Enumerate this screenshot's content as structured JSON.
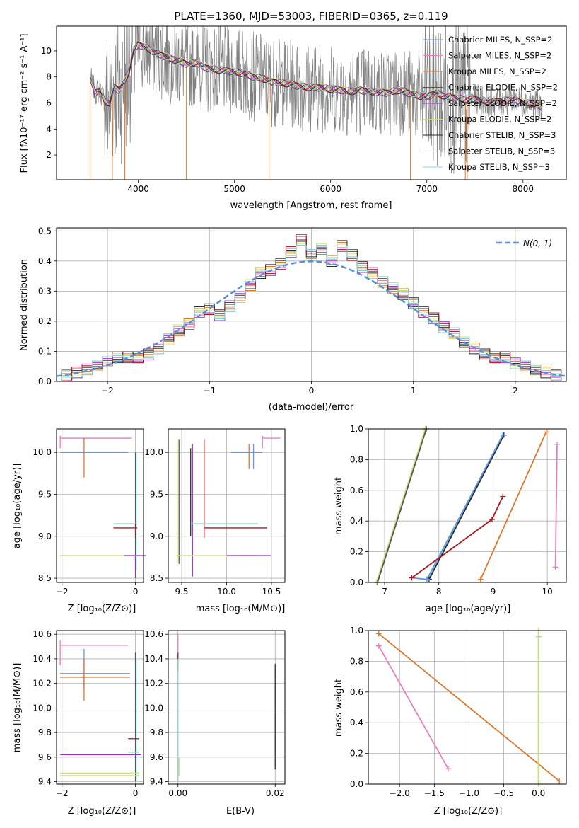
{
  "title": "PLATE=1360, MJD=53003, FIBERID=0365, z=0.119",
  "colors": {
    "chabrier_miles": "#6495ed",
    "salpeter_miles": "#e87fbd",
    "kroupa_miles": "#e2762a",
    "chabrier_elodie": "#555555",
    "salpeter_elodie": "#9b30c8",
    "kroupa_elodie": "#c8e070",
    "chabrier_stelib": "#2b2b2b",
    "salpeter_stelib": "#b0161e",
    "kroupa_stelib": "#7fd8d8",
    "data": "#808080",
    "normal": "#5b8ed8"
  },
  "chart_data": [
    {
      "id": "spectrum",
      "type": "line",
      "xlabel": "wavelength [Angstrom, rest frame]",
      "ylabel": "Flux [fλ10⁻¹⁷ erg cm⁻² s⁻¹ A⁻¹]",
      "xlim": [
        3150,
        8450
      ],
      "ylim": [
        0.1,
        11.9
      ],
      "xticks": [
        "4000",
        "5000",
        "6000",
        "7000",
        "8000"
      ],
      "yticks": [
        "2",
        "4",
        "6",
        "8",
        "10"
      ],
      "legend": [
        "Chabrier MILES, N_SSP=2",
        "Salpeter MILES, N_SSP=2",
        "Kroupa MILES, N_SSP=2",
        "Chabrier ELODIE, N_SSP=2",
        "Salpeter ELODIE, N_SSP=2",
        "Kroupa ELODIE, N_SSP=2",
        "Chabrier STELIB, N_SSP=3",
        "Salpeter STELIB, N_SSP=3",
        "Kroupa STELIB, N_SSP=3"
      ],
      "legend_position": "upper right",
      "model_continuum": {
        "x": [
          3500,
          3550,
          3600,
          3650,
          3700,
          3750,
          3800,
          3850,
          3900,
          3950,
          4000,
          4100,
          4200,
          4300,
          4400,
          4500,
          4600,
          4700,
          4800,
          4900,
          5000,
          5100,
          5200,
          5300,
          5400,
          5500,
          5600,
          5700,
          5800,
          5900,
          6000,
          6100,
          6200,
          6300,
          6400,
          6500,
          6600,
          6700,
          6800,
          6900,
          7000,
          7100,
          7200,
          7300,
          7400,
          7500,
          7600,
          7700,
          7800,
          7900,
          8000,
          8100,
          8200
        ],
        "y": [
          8.0,
          6.8,
          7.0,
          6.2,
          6.0,
          7.2,
          7.0,
          7.6,
          8.4,
          10.0,
          10.5,
          10.2,
          9.8,
          9.5,
          9.3,
          9.0,
          9.1,
          8.7,
          8.6,
          8.5,
          8.4,
          8.3,
          8.0,
          7.9,
          7.6,
          7.6,
          7.4,
          7.3,
          7.2,
          7.2,
          7.1,
          7.0,
          6.9,
          7.0,
          6.9,
          6.8,
          6.8,
          7.0,
          6.8,
          6.6,
          6.5,
          6.8,
          6.5,
          6.4,
          6.3,
          6.3,
          6.2,
          6.1,
          6.2,
          6.3,
          6.0,
          6.0,
          5.7
        ]
      },
      "data_range": [
        3500,
        8200
      ]
    },
    {
      "id": "residuals",
      "type": "histogram",
      "xlabel": "(data-model)/error",
      "ylabel": "Normed distribution",
      "xlim": [
        -2.5,
        2.5
      ],
      "ylim": [
        0,
        0.51
      ],
      "xticks": [
        "−2",
        "−1",
        "0",
        "1",
        "2"
      ],
      "yticks": [
        "0.0",
        "0.1",
        "0.2",
        "0.3",
        "0.4",
        "0.5"
      ],
      "legend": [
        "N(0, 1)"
      ],
      "legend_position": "upper right",
      "bin_centers": [
        -2.4,
        -2.3,
        -2.2,
        -2.1,
        -2.0,
        -1.9,
        -1.8,
        -1.7,
        -1.6,
        -1.5,
        -1.4,
        -1.3,
        -1.2,
        -1.1,
        -1.0,
        -0.9,
        -0.8,
        -0.7,
        -0.6,
        -0.5,
        -0.4,
        -0.3,
        -0.2,
        -0.1,
        0.0,
        0.1,
        0.2,
        0.3,
        0.4,
        0.5,
        0.6,
        0.7,
        0.8,
        0.9,
        1.0,
        1.1,
        1.2,
        1.3,
        1.4,
        1.5,
        1.6,
        1.7,
        1.8,
        1.9,
        2.0,
        2.1,
        2.2,
        2.3,
        2.4
      ],
      "values": [
        0.02,
        0.03,
        0.04,
        0.05,
        0.07,
        0.08,
        0.08,
        0.08,
        0.09,
        0.11,
        0.14,
        0.17,
        0.19,
        0.23,
        0.24,
        0.22,
        0.25,
        0.28,
        0.32,
        0.36,
        0.37,
        0.39,
        0.43,
        0.47,
        0.42,
        0.44,
        0.4,
        0.45,
        0.42,
        0.38,
        0.36,
        0.33,
        0.31,
        0.29,
        0.26,
        0.23,
        0.21,
        0.18,
        0.16,
        0.13,
        0.11,
        0.09,
        0.08,
        0.08,
        0.06,
        0.05,
        0.04,
        0.03,
        0.02
      ]
    },
    {
      "id": "age_vs_Z",
      "type": "scatter",
      "xlabel": "Z [log₁₀(Z/Z⊙)]",
      "ylabel": "age  [log₁₀(age/yr)]",
      "xlim": [
        -2.15,
        0.22
      ],
      "ylim": [
        8.45,
        10.28
      ],
      "xticks": [
        "−2",
        "0"
      ],
      "yticks": [
        "8.5",
        "9.0",
        "9.5",
        "10.0"
      ]
    },
    {
      "id": "age_vs_mass",
      "type": "scatter",
      "xlabel": "mass [log₁₀(M/M⊙)]",
      "xlim": [
        9.35,
        10.65
      ],
      "ylim": [
        8.45,
        10.28
      ],
      "xticks": [
        "9.5",
        "10.0",
        "10.5"
      ],
      "yticks": [
        "8.5",
        "9.0",
        "9.5",
        "10.0"
      ]
    },
    {
      "id": "mass_weight_vs_age",
      "type": "line",
      "xlabel": "age  [log₁₀(age/yr)]",
      "ylabel": "mass weight",
      "xlim": [
        6.7,
        10.35
      ],
      "ylim": [
        0,
        1
      ],
      "xticks": [
        "7",
        "8",
        "9",
        "10"
      ],
      "yticks": [
        "0.0",
        "0.2",
        "0.4",
        "0.6",
        "0.8",
        "1.0"
      ],
      "series": [
        {
          "color_key": "kroupa_elodie",
          "x": [
            6.85,
            7.75
          ],
          "y": [
            0.0,
            1.0
          ]
        },
        {
          "color_key": "chabrier_elodie",
          "x": [
            6.87,
            7.77
          ],
          "y": [
            0.0,
            1.0
          ]
        },
        {
          "color_key": "kroupa_stelib",
          "x": [
            7.8,
            9.18
          ],
          "y": [
            0.02,
            0.96
          ]
        },
        {
          "color_key": "chabrier_stelib",
          "x": [
            7.82,
            9.2
          ],
          "y": [
            0.02,
            0.96
          ]
        },
        {
          "color_key": "chabrier_miles",
          "x": [
            7.5,
            7.78,
            9.18
          ],
          "y": [
            0.03,
            0.02,
            0.96
          ]
        },
        {
          "color_key": "salpeter_stelib",
          "x": [
            7.5,
            8.98,
            9.18
          ],
          "y": [
            0.03,
            0.41,
            0.56
          ]
        },
        {
          "color_key": "kroupa_miles",
          "x": [
            8.77,
            9.98
          ],
          "y": [
            0.02,
            0.98
          ]
        },
        {
          "color_key": "salpeter_miles",
          "x": [
            10.15,
            10.18
          ],
          "y": [
            0.1,
            0.9
          ]
        }
      ]
    },
    {
      "id": "mass_vs_Z",
      "type": "scatter",
      "xlabel": "Z [log₁₀(Z/Z⊙)]",
      "ylabel": "mass [log₁₀(M/M⊙)]",
      "xlim": [
        -2.15,
        0.22
      ],
      "ylim": [
        9.38,
        10.63
      ],
      "xticks": [
        "−2",
        "0"
      ],
      "yticks": [
        "9.4",
        "9.6",
        "9.8",
        "10.0",
        "10.2",
        "10.4",
        "10.6"
      ]
    },
    {
      "id": "mass_vs_ebv",
      "type": "scatter",
      "xlabel": "E(B-V)",
      "xlim": [
        -0.002,
        0.022
      ],
      "ylim": [
        9.38,
        10.63
      ],
      "xticks": [
        "0.00",
        "0.02"
      ],
      "yticks": [
        "9.4",
        "9.6",
        "9.8",
        "10.0",
        "10.2",
        "10.4",
        "10.6"
      ]
    },
    {
      "id": "mass_weight_vs_Z",
      "type": "line",
      "xlabel": "Z [log₁₀(Z/Z⊙)]",
      "ylabel": "mass weight",
      "xlim": [
        -2.45,
        0.4
      ],
      "ylim": [
        0,
        1
      ],
      "xticks": [
        "−2.0",
        "−1.5",
        "−1.0",
        "−0.5",
        "0.0"
      ],
      "yticks": [
        "0.0",
        "0.2",
        "0.4",
        "0.6",
        "0.8",
        "1.0"
      ],
      "series": [
        {
          "color_key": "kroupa_miles",
          "x": [
            -2.3,
            0.3
          ],
          "y": [
            0.98,
            0.02
          ]
        },
        {
          "color_key": "salpeter_miles",
          "x": [
            -2.3,
            -1.3
          ],
          "y": [
            0.9,
            0.1
          ]
        },
        {
          "color_key": "kroupa_stelib",
          "x": [
            0.0,
            0.0
          ],
          "y": [
            0.02,
            0.96
          ]
        },
        {
          "color_key": "kroupa_elodie",
          "x": [
            0.0,
            0.0
          ],
          "y": [
            0.0,
            1.0
          ]
        }
      ]
    }
  ]
}
